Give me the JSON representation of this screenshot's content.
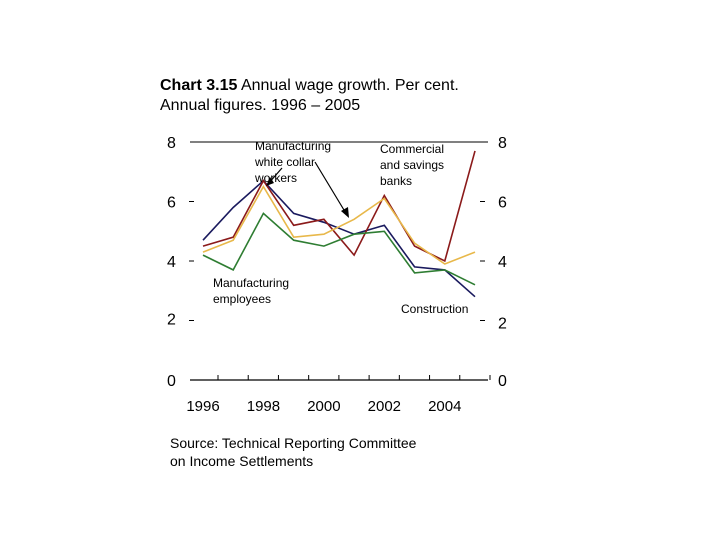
{
  "title": {
    "bold": "Chart 3.15",
    "rest_line1": " Annual wage growth. Per cent.",
    "line2": "Annual figures. 1996 – 2005"
  },
  "source_line1": "Source: Technical Reporting Committee",
  "source_line2": "on Income Settlements",
  "chart_data": {
    "type": "line",
    "x": [
      1996,
      1997,
      1998,
      1999,
      2000,
      2001,
      2002,
      2003,
      2004,
      2005
    ],
    "x_tick_labels": [
      "1996",
      "1998",
      "2000",
      "2002",
      "2004"
    ],
    "x_tick_values": [
      1996,
      1998,
      2000,
      2002,
      2004
    ],
    "ylim": [
      0,
      8
    ],
    "y_ticks_left": [
      0,
      2,
      4,
      6,
      8
    ],
    "y_ticks_right": [
      0,
      2,
      4,
      6,
      8
    ],
    "grid": false,
    "series": [
      {
        "name": "Manufacturing white collar workers",
        "color": "#1a1a5e",
        "values": [
          4.7,
          5.8,
          6.7,
          5.6,
          5.3,
          4.9,
          5.2,
          3.8,
          3.7,
          2.8
        ]
      },
      {
        "name": "Commercial and savings banks",
        "color": "#8b1a1a",
        "values": [
          4.5,
          4.8,
          6.7,
          5.2,
          5.4,
          4.2,
          6.2,
          4.5,
          4.0,
          7.7
        ]
      },
      {
        "name": "Manufacturing employees",
        "color": "#2e7d32",
        "values": [
          4.2,
          3.7,
          5.6,
          4.7,
          4.5,
          4.9,
          5.0,
          3.6,
          3.7,
          3.2
        ]
      },
      {
        "name": "Construction",
        "color": "#e8b84a",
        "values": [
          4.3,
          4.7,
          6.5,
          4.8,
          4.9,
          5.4,
          6.1,
          4.6,
          3.9,
          4.3
        ]
      }
    ],
    "annotations": [
      {
        "lines": [
          "Manufacturing",
          "white collar",
          "workers"
        ]
      },
      {
        "lines": [
          "Commercial",
          "and savings",
          "banks"
        ]
      },
      {
        "lines": [
          "Manufacturing",
          "employees"
        ]
      },
      {
        "lines": [
          "Construction"
        ]
      }
    ]
  }
}
